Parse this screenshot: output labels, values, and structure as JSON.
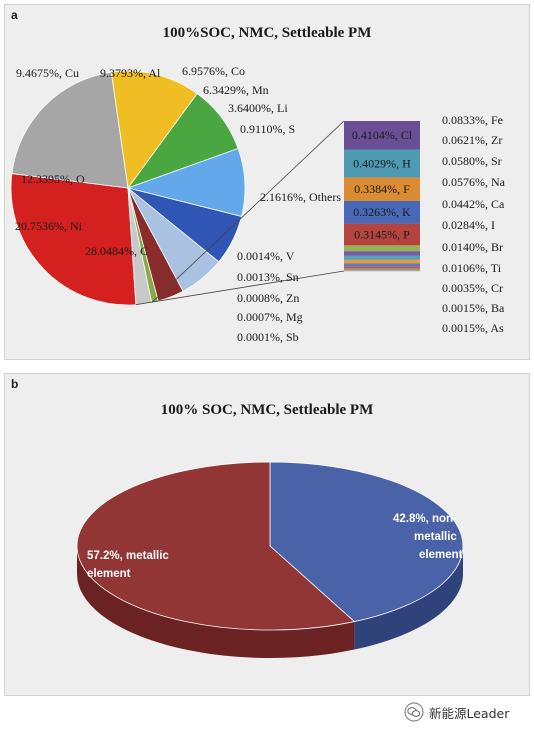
{
  "chart_data": [
    {
      "panel": "a",
      "type": "pie",
      "title": "100%SOC, NMC, Settleable PM",
      "slices": [
        {
          "label": "28.0484%, C",
          "value": 28.0484,
          "color": "#d52020"
        },
        {
          "label": "20.7536%, Ni",
          "value": 20.7536,
          "color": "#a6a6a6"
        },
        {
          "label": "12.3395%, O",
          "value": 12.3395,
          "color": "#f0bd22"
        },
        {
          "label": "9.4675%, Cu",
          "value": 9.4675,
          "color": "#4aa640"
        },
        {
          "label": "9.3793%, Al",
          "value": 9.3793,
          "color": "#62a8ea"
        },
        {
          "label": "6.9576%, Co",
          "value": 6.9576,
          "color": "#2f56b4"
        },
        {
          "label": "6.3429%, Mn",
          "value": 6.3429,
          "color": "#a9c2e2"
        },
        {
          "label": "3.6400%, Li",
          "value": 3.64,
          "color": "#8b2c2c"
        },
        {
          "label": "0.9110%, S",
          "value": 0.911,
          "color": "#86aa45"
        },
        {
          "label": "2.1616%, Others",
          "value": 2.1616,
          "color": "#c9c9c9"
        }
      ],
      "others_bar": {
        "segments": [
          {
            "label": "0.4104%, Cl",
            "value": 0.4104,
            "color": "#6a4f97"
          },
          {
            "label": "0.4029%, H",
            "value": 0.4029,
            "color": "#4f9ab3"
          },
          {
            "label": "0.3384%, F",
            "value": 0.3384,
            "color": "#db8b32"
          },
          {
            "label": "0.3263%, K",
            "value": 0.3263,
            "color": "#4769b7"
          },
          {
            "label": "0.3145%, P",
            "value": 0.3145,
            "color": "#b34440"
          },
          {
            "label": "0.0833%, Fe",
            "value": 0.0833,
            "color": "#93b452"
          },
          {
            "label": "0.0621%, Zr",
            "value": 0.0621,
            "color": "#7a5ba3"
          },
          {
            "label": "0.0580%, Sr",
            "value": 0.058,
            "color": "#4ea3bd"
          },
          {
            "label": "0.0576%, Na",
            "value": 0.0576,
            "color": "#e59a48"
          },
          {
            "label": "0.0442%, Ca",
            "value": 0.0442,
            "color": "#5a7ec4"
          },
          {
            "label": "0.0284%, I",
            "value": 0.0284,
            "color": "#c05651"
          },
          {
            "label": "0.0140%, Br",
            "value": 0.014,
            "color": "#9ebd63"
          },
          {
            "label": "0.0106%, Ti",
            "value": 0.0106,
            "color": "#8a6fb2"
          },
          {
            "label": "0.0035%, Cr",
            "value": 0.0035,
            "color": "#66b0c6"
          },
          {
            "label": "0.0015%, Ba",
            "value": 0.0015,
            "color": "#eeaa66"
          },
          {
            "label": "0.0015%, As",
            "value": 0.0015,
            "color": "#7590cc"
          },
          {
            "label": "0.0014%, V",
            "value": 0.0014,
            "color": "#cc7777"
          },
          {
            "label": "0.0013%, Sn",
            "value": 0.0013,
            "color": "#b1cc80"
          },
          {
            "label": "0.0008%, Zn",
            "value": 0.0008,
            "color": "#a593c6"
          },
          {
            "label": "0.0007%, Mg",
            "value": 0.0007,
            "color": "#85c2d3"
          },
          {
            "label": "0.0001%, Sb",
            "value": 0.0001,
            "color": "#f2c08e"
          }
        ]
      }
    },
    {
      "panel": "b",
      "type": "pie",
      "title": "100% SOC, NMC, Settleable PM",
      "slices": [
        {
          "label_line1": "42.8%, non-",
          "label_line2": "metallic",
          "label_line3": "element",
          "value": 42.8,
          "color": "#4a63a8",
          "side_color": "#2f437a"
        },
        {
          "label_line1": "57.2%, metallic",
          "label_line2": "element",
          "value": 57.2,
          "color": "#923535",
          "side_color": "#6a2222"
        }
      ]
    }
  ],
  "panels": {
    "a": "a",
    "b": "b"
  },
  "watermark": {
    "text": "新能源Leader",
    "icon": "wechat-icon"
  }
}
